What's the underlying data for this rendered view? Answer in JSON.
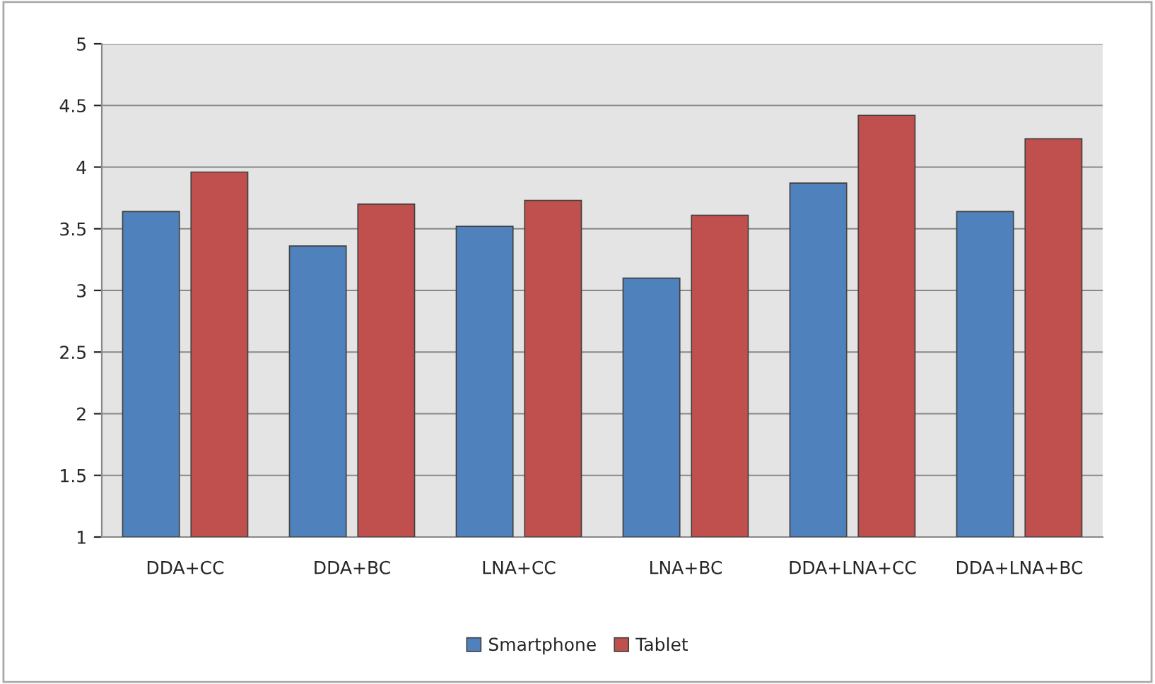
{
  "chart_data": {
    "type": "bar",
    "categories": [
      "DDA+CC",
      "DDA+BC",
      "LNA+CC",
      "LNA+BC",
      "DDA+LNA+CC",
      "DDA+LNA+BC"
    ],
    "series": [
      {
        "name": "Smartphone",
        "color": "#4f81bd",
        "values": [
          3.64,
          3.36,
          3.52,
          3.1,
          3.87,
          3.64
        ]
      },
      {
        "name": "Tablet",
        "color": "#c0504d",
        "values": [
          3.96,
          3.7,
          3.73,
          3.61,
          4.42,
          4.23
        ]
      }
    ],
    "ylim": [
      1,
      5
    ],
    "yticks": [
      1,
      1.5,
      2,
      2.5,
      3,
      3.5,
      4,
      4.5,
      5
    ],
    "grid": "y",
    "legend": "bottom"
  }
}
